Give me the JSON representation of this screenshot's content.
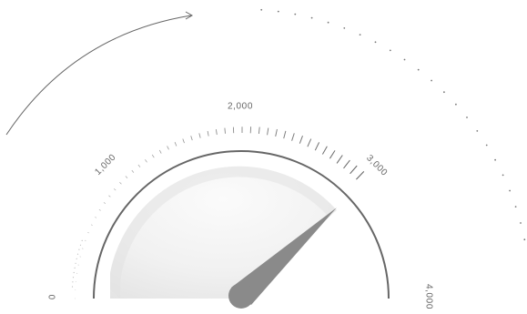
{
  "gauge": {
    "min": 0,
    "max": 4000,
    "value": 2700,
    "tick_labels": [
      {
        "text": "0",
        "value": 0
      },
      {
        "text": "1,000",
        "value": 1000
      },
      {
        "text": "2,000",
        "value": 2000
      },
      {
        "text": "3,000",
        "value": 3000
      },
      {
        "text": "4,000",
        "value": 4000
      }
    ]
  },
  "colors": {
    "arc": "#666666",
    "needle": "#8a8a8a",
    "dial_fill": "#efefef",
    "dial_rim": "#e2e2e2",
    "ticks": "#666666",
    "dots": "#777777"
  },
  "icons": {
    "arrow": "curved-arrow-icon",
    "needle": "needle-icon"
  }
}
